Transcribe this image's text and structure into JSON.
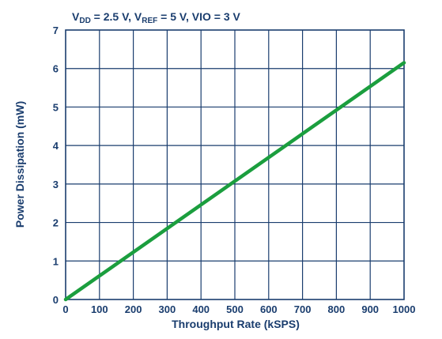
{
  "chart_data": {
    "type": "line",
    "title_parts": [
      {
        "text": "V",
        "sub": false
      },
      {
        "text": "DD",
        "sub": true
      },
      {
        "text": " = 2.5 V, V",
        "sub": false
      },
      {
        "text": "REF",
        "sub": true
      },
      {
        "text": " = 5 V, VIO = 3 V",
        "sub": false
      }
    ],
    "xlabel": "Throughput Rate (kSPS)",
    "ylabel": "Power Dissipation (mW)",
    "xlim": [
      0,
      1000
    ],
    "ylim": [
      0,
      7
    ],
    "xticks": [
      "0",
      "100",
      "200",
      "300",
      "400",
      "500",
      "600",
      "700",
      "800",
      "900",
      "1000"
    ],
    "yticks": [
      "0",
      "1",
      "2",
      "3",
      "4",
      "5",
      "6",
      "7"
    ],
    "grid": true,
    "series": [
      {
        "color": "#1b9e3e",
        "x": [
          0,
          1000
        ],
        "y": [
          0,
          6.15
        ]
      }
    ],
    "colors": {
      "text": "#1a3d6e",
      "grid": "#1a3d6e",
      "line": "#1b9e3e"
    }
  }
}
